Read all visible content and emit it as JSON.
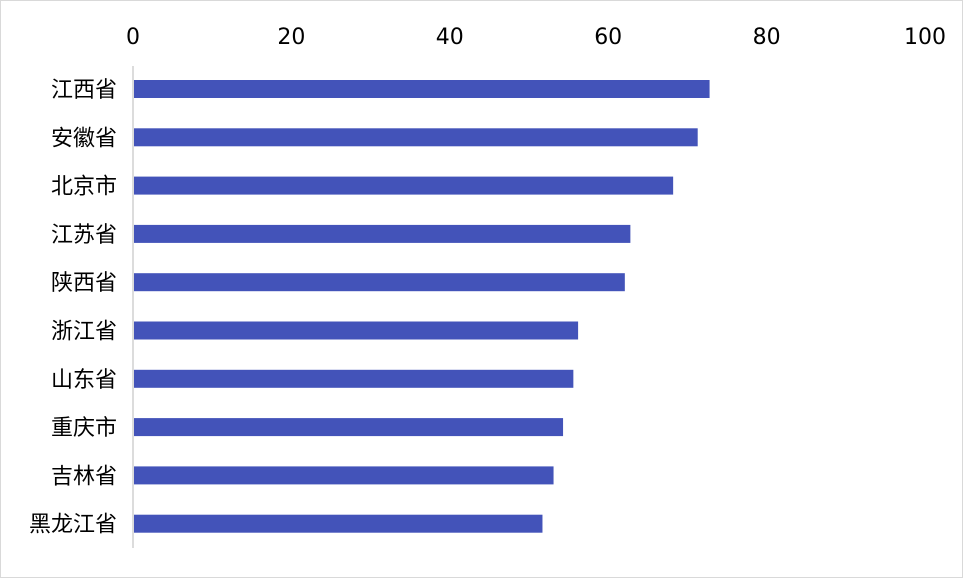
{
  "chart_data": {
    "type": "bar",
    "orientation": "horizontal",
    "categories": [
      "江西省",
      "安徽省",
      "北京市",
      "江苏省",
      "陕西省",
      "浙江省",
      "山东省",
      "重庆市",
      "吉林省",
      "黑龙江省"
    ],
    "values": [
      72.8,
      71.3,
      68.2,
      62.8,
      62.1,
      56.2,
      55.6,
      54.3,
      53.1,
      51.7
    ],
    "x_ticks": [
      "0",
      "20",
      "40",
      "60",
      "80",
      "100"
    ],
    "xlim": [
      0,
      100
    ],
    "x_axis_position": "top",
    "grid": false,
    "legend": "none",
    "bar_color": "#4353b9",
    "axis_color": "#d0d0d0"
  }
}
